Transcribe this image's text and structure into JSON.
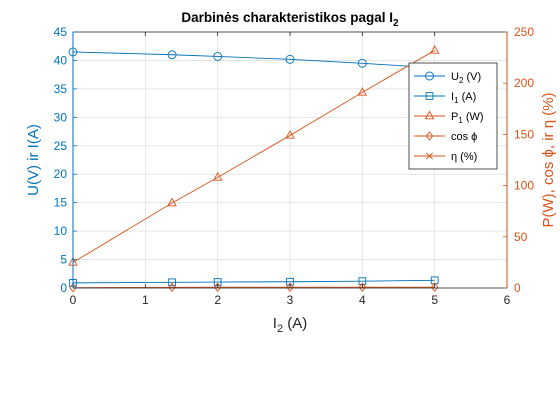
{
  "chart_data": {
    "type": "line",
    "title": "Darbinės charakteristikos pagal I",
    "title_sub": "2",
    "xlabel": "I",
    "xlabel_sub": "2",
    "xlabel_unit": " (A)",
    "ylabel_left": "U(V) ir I(A)",
    "ylabel_right": "P(W), cos ϕ, ir η (%)",
    "xlim": [
      0,
      6
    ],
    "ylim_left": [
      0,
      45
    ],
    "ylim_right": [
      0,
      250
    ],
    "xticks": [
      "0",
      "1",
      "2",
      "3",
      "4",
      "5",
      "6"
    ],
    "yticks_left": [
      "0",
      "5",
      "10",
      "15",
      "20",
      "25",
      "30",
      "35",
      "40",
      "45"
    ],
    "yticks_right": [
      "0",
      "50",
      "100",
      "150",
      "200",
      "250"
    ],
    "grid": true,
    "legend_position": "top-right",
    "colors": {
      "left": "#0072BD",
      "right": "#D95319"
    },
    "series": [
      {
        "name": "U",
        "name_sub": "2",
        "name_suffix": " (V)",
        "axis": "left",
        "marker": "circle",
        "x": [
          0,
          1.37,
          2.0,
          3.0,
          4.0,
          5.0
        ],
        "y": [
          41.5,
          41.0,
          40.7,
          40.2,
          39.5,
          38.7
        ]
      },
      {
        "name": "I",
        "name_sub": "1",
        "name_suffix": " (A)",
        "axis": "left",
        "marker": "square",
        "x": [
          0,
          1.37,
          2.0,
          3.0,
          4.0,
          5.0
        ],
        "y": [
          0.9,
          1.0,
          1.05,
          1.1,
          1.2,
          1.35
        ]
      },
      {
        "name": "P",
        "name_sub": "1",
        "name_suffix": " (W)",
        "axis": "right",
        "marker": "triangle",
        "x": [
          0,
          1.37,
          2.0,
          3.0,
          4.0,
          5.0
        ],
        "y": [
          25,
          83,
          108,
          149,
          191,
          232
        ]
      },
      {
        "name": "cos ϕ",
        "name_sub": "",
        "name_suffix": "",
        "axis": "right",
        "marker": "diamond",
        "x": [
          0,
          1.37,
          2.0,
          3.0,
          4.0,
          5.0
        ],
        "y": [
          0.3,
          0.7,
          0.75,
          0.8,
          0.82,
          0.84
        ]
      },
      {
        "name": "η",
        "name_sub": "",
        "name_suffix": " (%)",
        "axis": "right",
        "marker": "x",
        "x": [],
        "y": []
      }
    ]
  }
}
